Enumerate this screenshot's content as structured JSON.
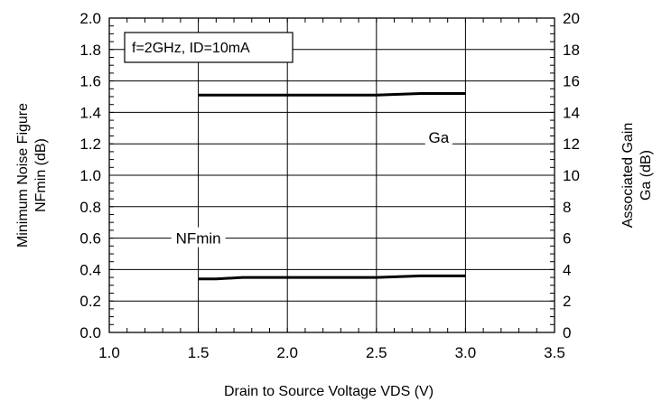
{
  "chart_data": {
    "type": "line",
    "condition": "f=2GHz, ID=10mA",
    "xlabel": "Drain to Source Voltage    VDS  (V)",
    "ylabel_left": [
      "Minimum Noise Figure",
      "NFmin  (dB)"
    ],
    "ylabel_right": [
      "Associated Gain",
      "Ga  (dB)"
    ],
    "xlim": [
      1.0,
      3.5
    ],
    "ylim_left": [
      0.0,
      2.0
    ],
    "ylim_right": [
      0,
      20
    ],
    "x_ticks": [
      "1.0",
      "1.5",
      "2.0",
      "2.5",
      "3.0",
      "3.5"
    ],
    "y_left_ticks": [
      "0.0",
      "0.2",
      "0.4",
      "0.6",
      "0.8",
      "1.0",
      "1.2",
      "1.4",
      "1.6",
      "1.8",
      "2.0"
    ],
    "y_right_ticks": [
      "0",
      "2",
      "4",
      "6",
      "8",
      "10",
      "12",
      "14",
      "16",
      "18",
      "20"
    ],
    "grid": true,
    "series": [
      {
        "name": "NFmin",
        "axis": "left",
        "x": [
          1.5,
          1.6,
          1.75,
          2.0,
          2.25,
          2.5,
          2.75,
          3.0
        ],
        "y": [
          0.34,
          0.34,
          0.35,
          0.35,
          0.35,
          0.35,
          0.36,
          0.36
        ]
      },
      {
        "name": "Ga",
        "axis": "right",
        "x": [
          1.5,
          2.0,
          2.5,
          2.75,
          3.0
        ],
        "y": [
          15.1,
          15.1,
          15.1,
          15.2,
          15.2
        ]
      }
    ]
  }
}
